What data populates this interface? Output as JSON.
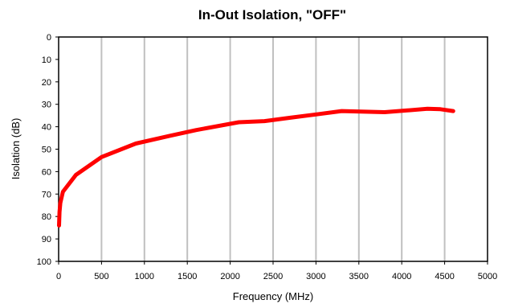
{
  "chart_data": {
    "type": "line",
    "title": "In-Out Isolation, \"OFF\"",
    "xlabel": "Frequency (MHz)",
    "ylabel": "Isolation (dB)",
    "xlim": [
      0,
      5000
    ],
    "ylim": [
      0,
      100
    ],
    "y_inverted": true,
    "x_ticks": [
      0,
      500,
      1000,
      1500,
      2000,
      2500,
      3000,
      3500,
      4000,
      4500,
      5000
    ],
    "y_ticks": [
      0,
      10,
      20,
      30,
      40,
      50,
      60,
      70,
      80,
      90,
      100
    ],
    "grid": "vertical",
    "legend": "none",
    "series": [
      {
        "color": "#ff0000",
        "x": [
          5,
          10,
          20,
          50,
          200,
          500,
          900,
          1300,
          1600,
          2100,
          2400,
          2700,
          3000,
          3300,
          3800,
          4300,
          4450,
          4600
        ],
        "y": [
          84,
          78,
          74,
          69,
          61.5,
          53.5,
          47.5,
          44,
          41.5,
          38,
          37.5,
          36,
          34.5,
          33,
          33.5,
          32,
          32.2,
          33
        ]
      }
    ]
  }
}
